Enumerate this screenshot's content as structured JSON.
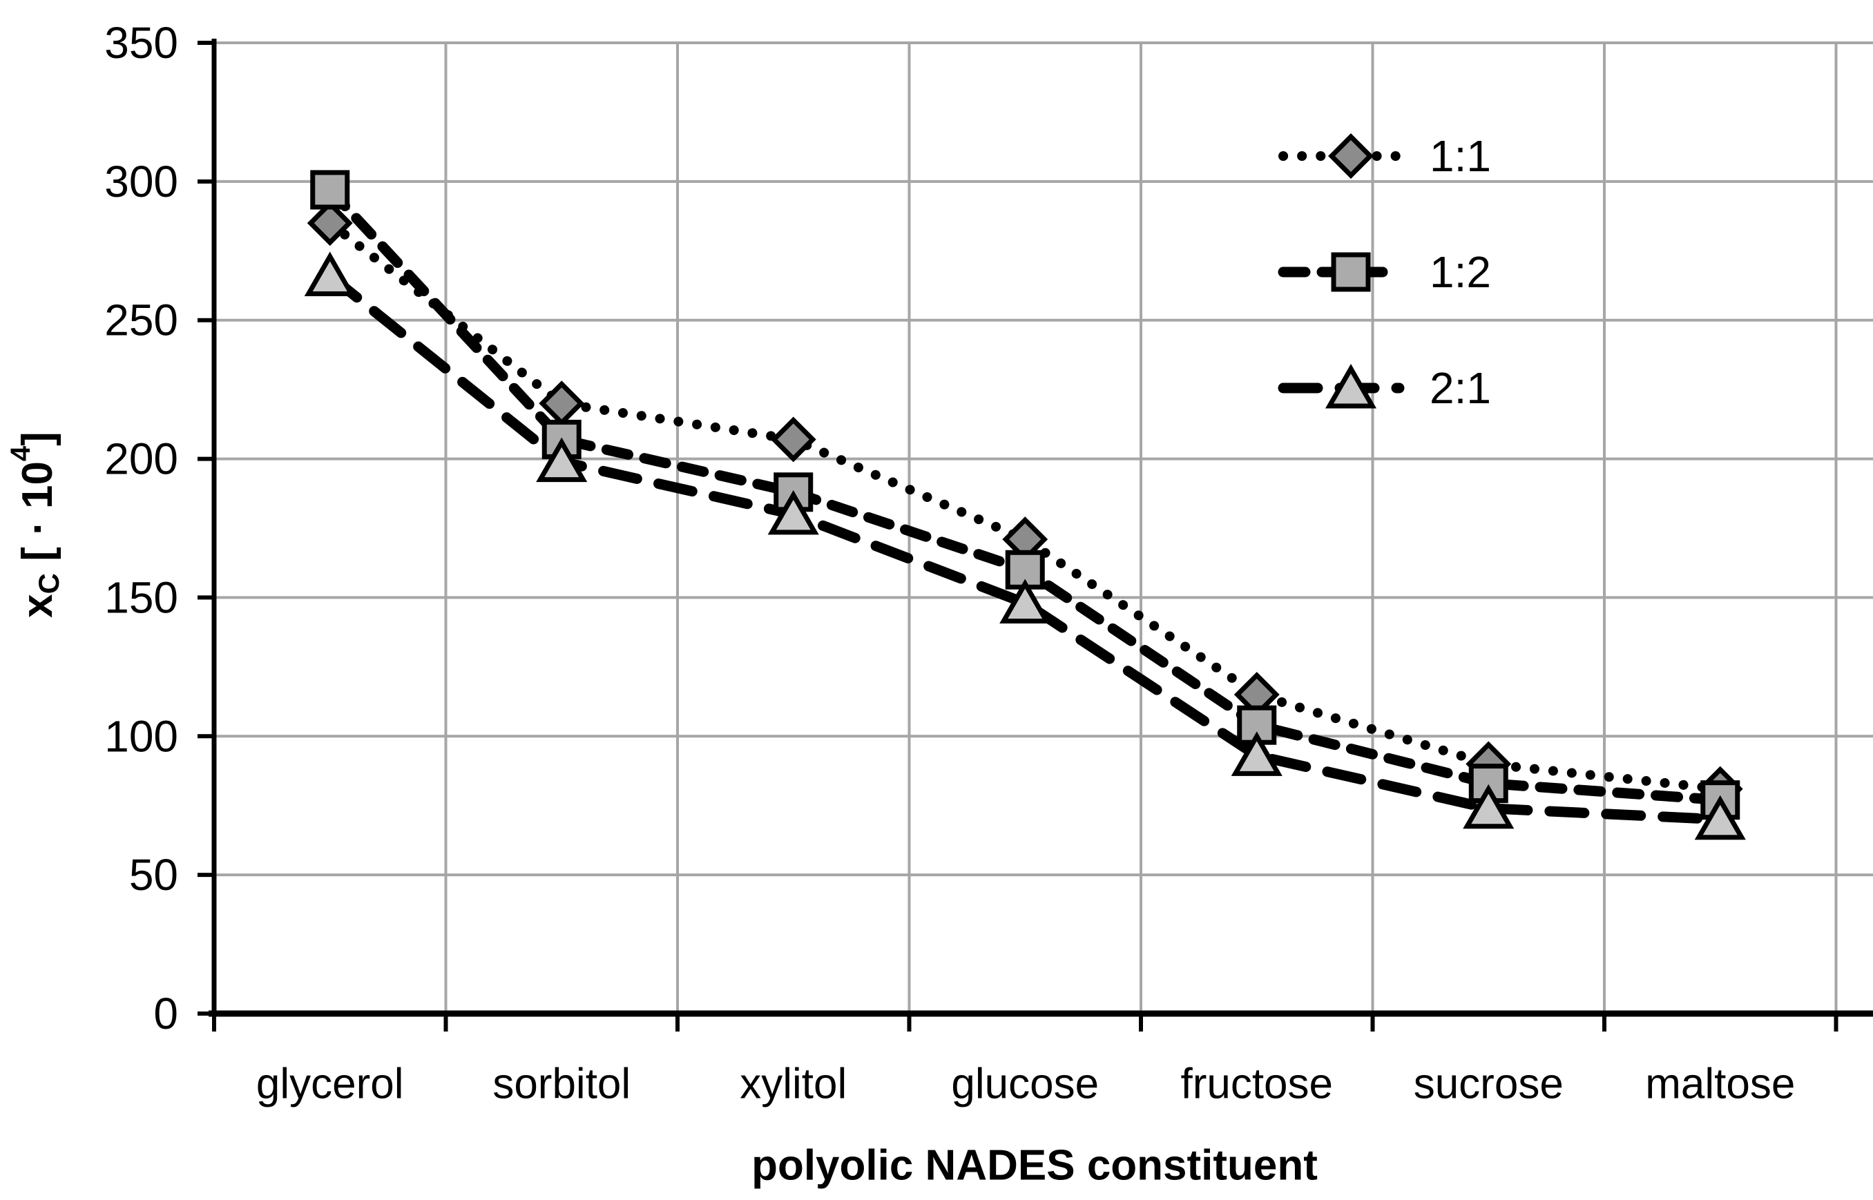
{
  "chart_data": {
    "type": "line",
    "title": "",
    "xlabel": "polyolic NADES constituent",
    "ylabel": "xC [ · 10⁴]",
    "ylabel_parts": [
      {
        "text": "x",
        "script": "base"
      },
      {
        "text": "C",
        "script": "sub"
      },
      {
        "text": " [ · 10",
        "script": "base"
      },
      {
        "text": "4",
        "script": "sup"
      },
      {
        "text": "]",
        "script": "base"
      }
    ],
    "categories": [
      "glycerol",
      "sorbitol",
      "xylitol",
      "glucose",
      "fructose",
      "sucrose",
      "maltose"
    ],
    "series": [
      {
        "name": "1:1",
        "values": [
          285,
          220,
          207,
          171,
          115,
          90,
          81
        ],
        "marker": "diamond",
        "marker_fill": "#8c8c8c",
        "line_style": "dotted"
      },
      {
        "name": "1:2",
        "values": [
          297,
          207,
          188,
          160,
          104,
          83,
          77
        ],
        "marker": "square",
        "marker_fill": "#ababab",
        "line_style": "dashed"
      },
      {
        "name": "2:1",
        "values": [
          266,
          199,
          180,
          148,
          93,
          74,
          70
        ],
        "marker": "triangle",
        "marker_fill": "#c9c9c9",
        "line_style": "long-dashed"
      }
    ],
    "ylim": [
      0,
      350
    ],
    "ytick_step": 50,
    "yticks": [
      0,
      50,
      100,
      150,
      200,
      250,
      300,
      350
    ],
    "grid": true,
    "legend_position": "upper-right",
    "legend_entries": [
      "1:1",
      "1:2",
      "2:1"
    ],
    "colors": {
      "line": "#000000",
      "grid": "#a6a6a6",
      "axis": "#000000",
      "background": "#ffffff"
    }
  }
}
